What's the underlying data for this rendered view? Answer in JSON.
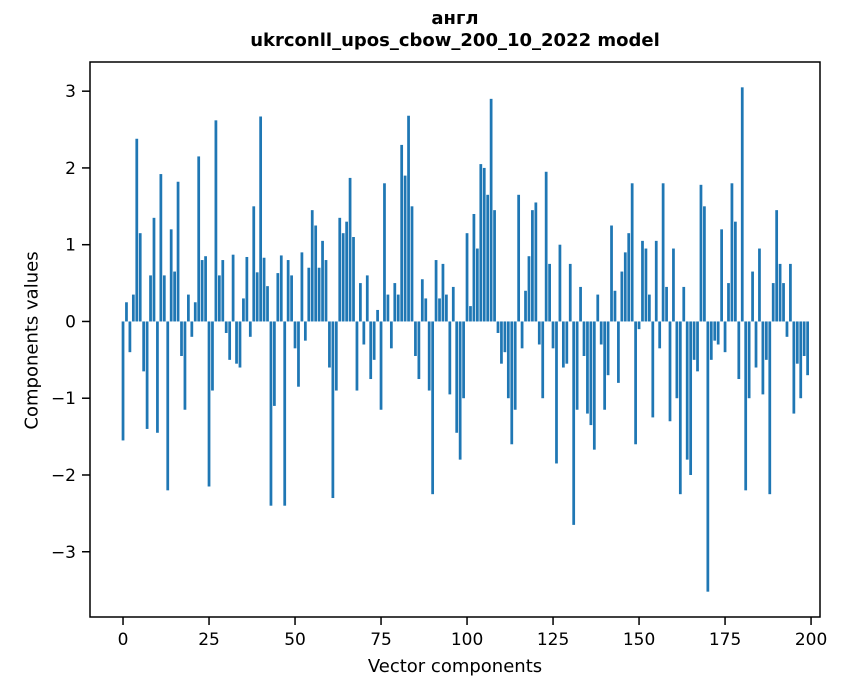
{
  "title": {
    "line1": "англ",
    "line2": "ukrconll_upos_cbow_200_10_2022 model"
  },
  "chart_data": {
    "type": "bar",
    "title": "англ — ukrconll_upos_cbow_200_10_2022 model",
    "xlabel": "Vector components",
    "ylabel": "Components values",
    "bar_color": "#1f77b4",
    "background_color": "#ffffff",
    "spine_color": "#000000",
    "grid": false,
    "legend": false,
    "xlim": [
      -9.6,
      202.6
    ],
    "ylim": [
      -3.85,
      3.38
    ],
    "xticks": [
      {
        "label": "0",
        "value": 0
      },
      {
        "label": "25",
        "value": 25
      },
      {
        "label": "50",
        "value": 50
      },
      {
        "label": "75",
        "value": 75
      },
      {
        "label": "100",
        "value": 100
      },
      {
        "label": "125",
        "value": 125
      },
      {
        "label": "150",
        "value": 150
      },
      {
        "label": "175",
        "value": 175
      },
      {
        "label": "200",
        "value": 200
      }
    ],
    "yticks": [
      {
        "label": "3",
        "value": 3
      },
      {
        "label": "2",
        "value": 2
      },
      {
        "label": "1",
        "value": 1
      },
      {
        "label": "0",
        "value": 0
      },
      {
        "label": "−1",
        "value": -1
      },
      {
        "label": "−2",
        "value": -2
      },
      {
        "label": "−3",
        "value": -3
      }
    ],
    "x": "component index 0..199",
    "values": [
      -1.55,
      0.25,
      -0.4,
      0.35,
      2.38,
      1.15,
      -0.65,
      -1.4,
      0.6,
      1.35,
      -1.45,
      1.92,
      0.6,
      -2.2,
      1.2,
      0.65,
      1.82,
      -0.45,
      -1.15,
      0.35,
      -0.2,
      0.25,
      2.15,
      0.8,
      0.85,
      -2.15,
      -0.9,
      2.62,
      0.6,
      0.8,
      -0.15,
      -0.5,
      0.87,
      -0.55,
      -0.6,
      0.3,
      0.84,
      -0.2,
      1.5,
      0.64,
      2.67,
      0.83,
      0.46,
      -2.4,
      -1.1,
      0.63,
      0.86,
      -2.4,
      0.8,
      0.6,
      -0.35,
      -0.85,
      0.9,
      -0.25,
      0.7,
      1.45,
      1.25,
      0.7,
      1.05,
      0.8,
      -0.6,
      -2.3,
      -0.9,
      1.35,
      1.15,
      1.3,
      1.87,
      1.1,
      -0.9,
      0.5,
      -0.3,
      0.6,
      -0.75,
      -0.5,
      0.15,
      -1.15,
      1.8,
      0.35,
      -0.35,
      0.5,
      0.35,
      2.3,
      1.9,
      2.68,
      1.5,
      -0.45,
      -0.75,
      0.55,
      0.3,
      -0.9,
      -2.25,
      0.8,
      0.3,
      0.75,
      0.35,
      -0.95,
      0.45,
      -1.45,
      -1.8,
      -1.0,
      1.15,
      0.2,
      1.4,
      0.95,
      2.05,
      2.0,
      1.65,
      2.9,
      1.45,
      -0.15,
      -0.55,
      -0.4,
      -1.0,
      -1.6,
      -1.15,
      1.65,
      -0.35,
      0.4,
      0.85,
      1.45,
      1.55,
      -0.3,
      -1.0,
      1.95,
      0.75,
      -0.35,
      -1.85,
      1.0,
      -0.6,
      -0.55,
      0.75,
      -2.65,
      -1.15,
      0.45,
      -0.45,
      -1.2,
      -1.35,
      -1.67,
      0.35,
      -0.3,
      -1.15,
      -0.7,
      1.25,
      0.4,
      -0.8,
      0.65,
      0.9,
      1.15,
      1.8,
      -1.6,
      -0.1,
      1.05,
      0.95,
      0.35,
      -1.25,
      1.05,
      -0.35,
      1.8,
      0.45,
      -1.3,
      0.95,
      -1.0,
      -2.25,
      0.45,
      -1.8,
      -2.0,
      -0.5,
      -0.65,
      1.78,
      1.5,
      -3.52,
      -0.5,
      -0.25,
      -0.3,
      1.2,
      -0.4,
      0.5,
      1.8,
      1.3,
      -0.75,
      3.05,
      -2.2,
      -1.0,
      0.65,
      -0.6,
      0.95,
      -0.95,
      -0.5,
      -2.25,
      0.5,
      1.45,
      0.75,
      0.5,
      -0.2,
      0.75,
      -1.2,
      -0.55,
      -1.0,
      -0.45,
      -0.7
    ]
  }
}
